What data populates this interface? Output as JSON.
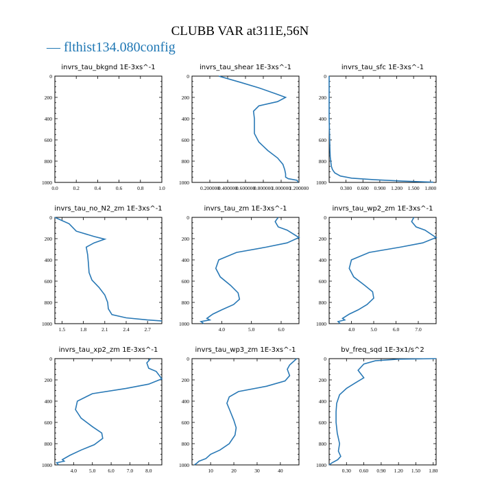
{
  "figure": {
    "title": "CLUBB VAR at311E,56N",
    "legend": "— flthist134.080config",
    "line_color": "#2878b5"
  },
  "chart_data": [
    {
      "type": "line",
      "title": "invrs_tau_bkgnd   1E-3xs^-1",
      "xlim": [
        0,
        1.0
      ],
      "ylim": [
        1000,
        0
      ],
      "xticks": [
        "0.0",
        "0.2",
        "0.4",
        "0.6",
        "0.8",
        "1.0"
      ],
      "xtick_values": [
        0,
        0.2,
        0.4,
        0.6,
        0.8,
        1.0
      ],
      "yticks": [
        "0",
        "200",
        "400",
        "600",
        "800",
        "1000"
      ],
      "series": [
        {
          "x": [],
          "y": []
        }
      ]
    },
    {
      "type": "line",
      "title": "invrs_tau_shear   1E-3xs^-1",
      "xlim": [
        0.0,
        1.2
      ],
      "ylim": [
        1000,
        0
      ],
      "xticks": [
        "0.200000",
        "0.400000",
        "0.600000",
        "0.800000",
        "1.000000",
        "1.200000"
      ],
      "xtick_values": [
        0.2,
        0.4,
        0.6,
        0.8,
        1.0,
        1.2
      ],
      "yticks": [
        "0",
        "200",
        "400",
        "600",
        "800",
        "1000"
      ],
      "series": [
        {
          "x": [
            0.3,
            0.55,
            0.75,
            0.95,
            1.05,
            0.96,
            0.75,
            0.69,
            0.7,
            0.7,
            0.7,
            0.75,
            0.85,
            0.96,
            1.02,
            1.04,
            1.05,
            1.05,
            1.08,
            1.18,
            1.19
          ],
          "y": [
            0,
            60,
            110,
            170,
            200,
            240,
            280,
            330,
            400,
            470,
            540,
            620,
            700,
            770,
            830,
            880,
            920,
            950,
            965,
            980,
            1000
          ]
        }
      ]
    },
    {
      "type": "line",
      "title": "invrs_tau_sfc   1E-3xs^-1",
      "xlim": [
        0,
        1.9
      ],
      "ylim": [
        1000,
        0
      ],
      "xticks": [
        "0.300",
        "0.600",
        "0.900",
        "1.200",
        "1.500",
        "1.800"
      ],
      "xtick_values": [
        0.3,
        0.6,
        0.9,
        1.2,
        1.5,
        1.8
      ],
      "yticks": [
        "0",
        "200",
        "400",
        "600",
        "800",
        "1000"
      ],
      "series": [
        {
          "x": [
            0.0,
            0.0,
            0.01,
            0.015,
            0.02,
            0.03,
            0.04,
            0.06,
            0.1,
            0.2,
            0.4,
            0.8,
            1.3,
            1.85
          ],
          "y": [
            0,
            400,
            600,
            700,
            760,
            810,
            850,
            880,
            910,
            940,
            960,
            975,
            988,
            998
          ]
        }
      ]
    },
    {
      "type": "line",
      "title": "invrs_tau_no_N2_zm   1E-3xs^-1",
      "xlim": [
        1.4,
        2.9
      ],
      "ylim": [
        1000,
        0
      ],
      "xticks": [
        "1.5",
        "1.8",
        "2.1",
        "2.4",
        "2.7"
      ],
      "xtick_values": [
        1.5,
        1.8,
        2.1,
        2.4,
        2.7
      ],
      "yticks": [
        "0",
        "200",
        "400",
        "600",
        "800",
        "1000"
      ],
      "series": [
        {
          "x": [
            1.4,
            1.6,
            1.7,
            1.95,
            2.1,
            1.95,
            1.84,
            1.86,
            1.87,
            1.88,
            1.92,
            2.02,
            2.1,
            2.14,
            2.15,
            2.2,
            2.4,
            2.7,
            2.9
          ],
          "y": [
            0,
            60,
            130,
            180,
            205,
            240,
            280,
            350,
            430,
            520,
            590,
            660,
            730,
            800,
            860,
            915,
            945,
            965,
            975
          ]
        }
      ]
    },
    {
      "type": "line",
      "title": "invrs_tau_zm   1E-3xs^-1",
      "xlim": [
        3.0,
        6.6
      ],
      "ylim": [
        1000,
        0
      ],
      "xticks": [
        "4.0",
        "5.0",
        "6.0"
      ],
      "xtick_values": [
        4.0,
        5.0,
        6.0
      ],
      "yticks": [
        "0",
        "200",
        "400",
        "600",
        "800",
        "1000"
      ],
      "series": [
        {
          "x": [
            5.9,
            5.8,
            5.9,
            6.2,
            6.6,
            6.2,
            5.5,
            4.5,
            3.9,
            3.8,
            3.95,
            4.3,
            4.55,
            4.6,
            4.4,
            4.0,
            3.7,
            3.5,
            3.6,
            3.3,
            3.4
          ],
          "y": [
            0,
            40,
            90,
            120,
            190,
            240,
            280,
            330,
            400,
            480,
            560,
            640,
            710,
            770,
            820,
            870,
            910,
            950,
            965,
            980,
            1000
          ]
        }
      ]
    },
    {
      "type": "line",
      "title": "invrs_tau_wp2_zm   1E-3xs^-1",
      "xlim": [
        3.0,
        7.8
      ],
      "ylim": [
        1000,
        0
      ],
      "xticks": [
        "4.0",
        "5.0",
        "6.0",
        "7.0"
      ],
      "xtick_values": [
        4.0,
        5.0,
        6.0,
        7.0
      ],
      "yticks": [
        "0",
        "200",
        "400",
        "600",
        "800",
        "1000"
      ],
      "series": [
        {
          "x": [
            6.8,
            6.7,
            6.9,
            7.3,
            7.8,
            7.2,
            6.2,
            4.8,
            4.0,
            3.9,
            4.1,
            4.6,
            4.95,
            5.0,
            4.7,
            4.3,
            3.9,
            3.6,
            3.7,
            3.4,
            3.5
          ],
          "y": [
            0,
            40,
            90,
            120,
            190,
            240,
            280,
            330,
            400,
            480,
            560,
            640,
            700,
            760,
            820,
            870,
            910,
            950,
            965,
            980,
            1000
          ]
        }
      ]
    },
    {
      "type": "line",
      "title": "invrs_tau_xp2_zm   1E-3xs^-1",
      "xlim": [
        3.0,
        8.7
      ],
      "ylim": [
        1000,
        0
      ],
      "xticks": [
        "4.0",
        "5.0",
        "6.0",
        "7.0",
        "8.0"
      ],
      "xtick_values": [
        4.0,
        5.0,
        6.0,
        7.0,
        8.0
      ],
      "yticks": [
        "0",
        "200",
        "400",
        "600",
        "800",
        "1000"
      ],
      "series": [
        {
          "x": [
            8.1,
            7.9,
            8.0,
            8.4,
            8.7,
            8.0,
            6.8,
            5.0,
            4.2,
            4.1,
            4.4,
            5.0,
            5.5,
            5.55,
            5.1,
            4.4,
            3.8,
            3.4,
            3.5,
            3.1,
            3.2
          ],
          "y": [
            0,
            40,
            90,
            120,
            190,
            240,
            280,
            330,
            400,
            480,
            560,
            640,
            700,
            750,
            810,
            860,
            910,
            950,
            965,
            980,
            1000
          ]
        }
      ]
    },
    {
      "type": "line",
      "title": "invrs_tau_wp3_zm   1E-3xs^-1",
      "xlim": [
        2,
        48
      ],
      "ylim": [
        1000,
        0
      ],
      "xticks": [
        "10",
        "20",
        "30",
        "40"
      ],
      "xtick_values": [
        10,
        20,
        30,
        40
      ],
      "yticks": [
        "0",
        "200",
        "400",
        "600",
        "800",
        "1000"
      ],
      "series": [
        {
          "x": [
            47,
            46,
            44,
            43,
            44,
            42,
            34,
            22,
            18,
            17,
            18.5,
            20,
            21,
            20.5,
            18,
            14,
            10,
            8,
            5,
            4,
            3
          ],
          "y": [
            0,
            20,
            60,
            100,
            160,
            210,
            260,
            310,
            360,
            420,
            500,
            580,
            650,
            720,
            800,
            860,
            900,
            940,
            965,
            985,
            1000
          ]
        }
      ]
    },
    {
      "type": "line",
      "title": "bv_freq_sqd   1E-3x1/s^2",
      "xlim": [
        0,
        1.85
      ],
      "ylim": [
        1000,
        0
      ],
      "xticks": [
        "0.30",
        "0.60",
        "0.90",
        "1.20",
        "1.50",
        "1.80"
      ],
      "xtick_values": [
        0.3,
        0.6,
        0.9,
        1.2,
        1.5,
        1.8
      ],
      "yticks": [
        "0",
        "200",
        "400",
        "600",
        "800",
        "1000"
      ],
      "series": [
        {
          "x": [
            1.85,
            1.2,
            0.8,
            0.6,
            0.5,
            0.6,
            0.45,
            0.3,
            0.18,
            0.13,
            0.12,
            0.12,
            0.14,
            0.18,
            0.16,
            0.2,
            0.15,
            0.05,
            0.0
          ],
          "y": [
            0,
            5,
            20,
            50,
            110,
            180,
            230,
            280,
            340,
            420,
            500,
            600,
            700,
            800,
            870,
            920,
            950,
            980,
            1000
          ]
        }
      ]
    }
  ]
}
